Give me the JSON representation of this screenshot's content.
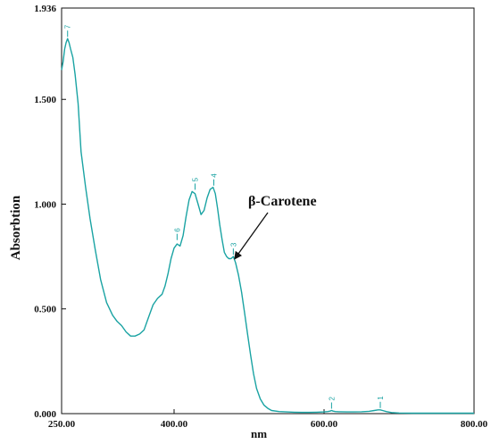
{
  "chart_data": {
    "type": "line",
    "xlabel": "nm",
    "ylabel": "Absorbtion",
    "xlim": [
      250,
      800
    ],
    "ylim": [
      0,
      1.936
    ],
    "x_ticks": [
      "250.00",
      "400.00",
      "600.00",
      "800.00"
    ],
    "y_ticks": [
      "0.000",
      "0.500",
      "1.000",
      "1.500",
      "1.936"
    ],
    "grid": false,
    "line_color": "#1aa3a3",
    "annotation": {
      "text": "β-Carotene",
      "x": 479,
      "y": 0.75
    },
    "peaks": [
      {
        "label": "1",
        "x": 675,
        "y": 0.018
      },
      {
        "label": "2",
        "x": 610,
        "y": 0.015
      },
      {
        "label": "3",
        "x": 479,
        "y": 0.75
      },
      {
        "label": "4",
        "x": 453,
        "y": 1.08
      },
      {
        "label": "5",
        "x": 428,
        "y": 1.06
      },
      {
        "label": "6",
        "x": 404,
        "y": 0.82
      },
      {
        "label": "7",
        "x": 258,
        "y": 1.79
      }
    ],
    "series": [
      {
        "x": [
          250,
          252,
          254,
          256,
          258,
          260,
          262,
          265,
          268,
          272,
          276,
          282,
          288,
          295,
          302,
          310,
          318,
          324,
          330,
          336,
          342,
          348,
          354,
          360,
          366,
          372,
          378,
          384,
          388,
          392,
          396,
          400,
          404,
          408,
          412,
          416,
          420,
          424,
          428,
          432,
          436,
          440,
          444,
          448,
          452,
          455,
          458,
          461,
          464,
          467,
          470,
          473,
          476,
          479,
          482,
          486,
          490,
          494,
          498,
          502,
          506,
          510,
          515,
          520,
          525,
          530,
          540,
          550,
          560,
          570,
          580,
          590,
          600,
          605,
          608,
          610,
          612,
          615,
          620,
          630,
          640,
          650,
          660,
          667,
          672,
          675,
          678,
          683,
          690,
          700,
          720,
          740,
          760,
          780,
          800
        ],
        "y": [
          1.64,
          1.68,
          1.74,
          1.77,
          1.79,
          1.77,
          1.74,
          1.7,
          1.62,
          1.48,
          1.25,
          1.08,
          0.93,
          0.78,
          0.64,
          0.53,
          0.47,
          0.44,
          0.42,
          0.39,
          0.37,
          0.37,
          0.38,
          0.4,
          0.46,
          0.52,
          0.55,
          0.57,
          0.61,
          0.67,
          0.74,
          0.79,
          0.81,
          0.8,
          0.85,
          0.94,
          1.02,
          1.06,
          1.05,
          1.0,
          0.95,
          0.97,
          1.03,
          1.07,
          1.08,
          1.05,
          0.98,
          0.9,
          0.83,
          0.77,
          0.75,
          0.74,
          0.74,
          0.75,
          0.72,
          0.66,
          0.58,
          0.48,
          0.38,
          0.28,
          0.19,
          0.12,
          0.07,
          0.04,
          0.025,
          0.015,
          0.01,
          0.008,
          0.007,
          0.006,
          0.006,
          0.007,
          0.008,
          0.01,
          0.012,
          0.015,
          0.012,
          0.01,
          0.009,
          0.008,
          0.008,
          0.009,
          0.011,
          0.015,
          0.018,
          0.018,
          0.015,
          0.01,
          0.005,
          0.003,
          0.002,
          0.002,
          0.002,
          0.002,
          0.002
        ]
      }
    ]
  }
}
